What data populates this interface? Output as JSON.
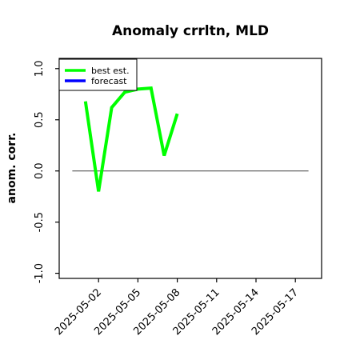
{
  "chart_data": {
    "type": "line",
    "title": "Anomaly crrltn, MLD",
    "xlabel": "",
    "ylabel": "anom. corr.",
    "ylim": [
      -1.05,
      1.1
    ],
    "xlim": [
      "2025-04-29",
      "2025-05-19"
    ],
    "yticks": [
      "-1.0",
      "-0.5",
      "0.0",
      "0.5",
      "1.0"
    ],
    "xticks": [
      {
        "label": "2025-05-02",
        "color": "#000000"
      },
      {
        "label": "2025-05-05",
        "color": "#000000"
      },
      {
        "label": "2025-05-08",
        "color": "#228b22"
      },
      {
        "label": "2025-05-11",
        "color": "#000000"
      },
      {
        "label": "2025-05-14",
        "color": "#000000"
      },
      {
        "label": "2025-05-17",
        "color": "#000000"
      }
    ],
    "reference_line": {
      "y": 0,
      "from": "2025-04-30",
      "to": "2025-05-18",
      "color": "#555555"
    },
    "series": [
      {
        "name": "best est.",
        "color": "#00ff00",
        "x": [
          "2025-05-01",
          "2025-05-02",
          "2025-05-03",
          "2025-05-04",
          "2025-05-05",
          "2025-05-06",
          "2025-05-07",
          "2025-05-08"
        ],
        "values": [
          0.68,
          -0.2,
          0.62,
          0.77,
          0.8,
          0.81,
          0.15,
          0.56
        ]
      },
      {
        "name": "forecast",
        "color": "#0000ff",
        "x": [],
        "values": []
      }
    ],
    "legend_position": "top-left",
    "grid": false
  }
}
